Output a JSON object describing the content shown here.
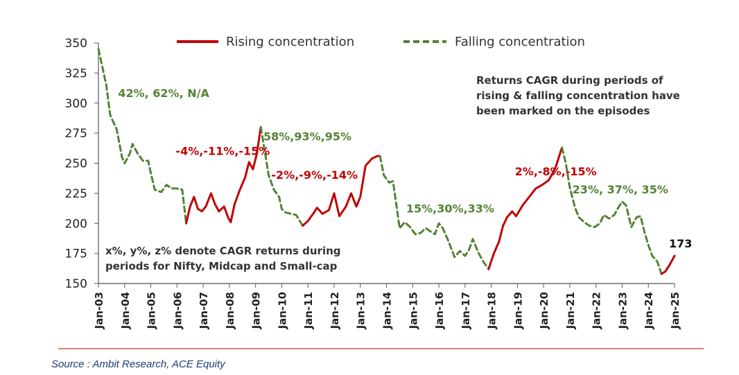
{
  "chart_data": {
    "type": "line",
    "title": "",
    "ylim": [
      150,
      350
    ],
    "yticks": [
      "350",
      "325",
      "300",
      "275",
      "250",
      "225",
      "200",
      "175",
      "150"
    ],
    "x_tick_labels": [
      "Jan-03",
      "Jan-04",
      "Jan-05",
      "Jan-06",
      "Jan-07",
      "Jan-08",
      "Jan-09",
      "Jan-10",
      "Jan-11",
      "Jan-12",
      "Jan-13",
      "Jan-14",
      "Jan-15",
      "Jan-16",
      "Jan-17",
      "Jan-18",
      "Jan-19",
      "Jan-20",
      "Jan-21",
      "Jan-22",
      "Jan-23",
      "Jan-24",
      "Jan-25"
    ],
    "legend": {
      "rising": "Rising concentration",
      "falling": "Falling concentration"
    },
    "colors": {
      "rising": "#c00000",
      "falling": "#548235"
    },
    "series": [
      {
        "name": "Falling concentration",
        "style": "falling",
        "points": [
          [
            2003.0,
            345
          ],
          [
            2003.3,
            315
          ],
          [
            2003.45,
            290
          ],
          [
            2003.7,
            278
          ],
          [
            2003.9,
            255
          ],
          [
            2004.0,
            250
          ],
          [
            2004.2,
            258
          ],
          [
            2004.3,
            266
          ],
          [
            2004.5,
            258
          ],
          [
            2004.7,
            252
          ],
          [
            2004.9,
            252
          ],
          [
            2005.0,
            242
          ],
          [
            2005.15,
            228
          ],
          [
            2005.4,
            226
          ],
          [
            2005.6,
            232
          ],
          [
            2005.8,
            229
          ],
          [
            2006.0,
            229
          ],
          [
            2006.2,
            228
          ],
          [
            2006.35,
            200
          ]
        ]
      },
      {
        "name": "Rising concentration",
        "style": "rising",
        "points": [
          [
            2006.35,
            200
          ],
          [
            2006.5,
            214
          ],
          [
            2006.65,
            222
          ],
          [
            2006.8,
            212
          ],
          [
            2006.95,
            210
          ],
          [
            2007.1,
            214
          ],
          [
            2007.3,
            225
          ],
          [
            2007.45,
            216
          ],
          [
            2007.6,
            210
          ],
          [
            2007.8,
            214
          ],
          [
            2007.95,
            205
          ],
          [
            2008.05,
            201
          ],
          [
            2008.2,
            216
          ],
          [
            2008.4,
            228
          ],
          [
            2008.6,
            238
          ],
          [
            2008.75,
            251
          ],
          [
            2008.9,
            245
          ],
          [
            2009.05,
            258
          ],
          [
            2009.2,
            280
          ]
        ]
      },
      {
        "name": "Falling concentration",
        "style": "falling",
        "points": [
          [
            2009.2,
            280
          ],
          [
            2009.35,
            260
          ],
          [
            2009.5,
            240
          ],
          [
            2009.7,
            228
          ],
          [
            2009.9,
            222
          ],
          [
            2010.0,
            212
          ],
          [
            2010.15,
            209
          ],
          [
            2010.35,
            208
          ],
          [
            2010.55,
            207
          ],
          [
            2010.8,
            198
          ]
        ]
      },
      {
        "name": "Rising concentration",
        "style": "rising",
        "points": [
          [
            2010.8,
            198
          ],
          [
            2011.0,
            202
          ],
          [
            2011.2,
            208
          ],
          [
            2011.35,
            213
          ],
          [
            2011.55,
            208
          ],
          [
            2011.8,
            211
          ],
          [
            2012.0,
            225
          ],
          [
            2012.2,
            206
          ],
          [
            2012.45,
            214
          ],
          [
            2012.65,
            225
          ],
          [
            2012.85,
            214
          ],
          [
            2013.0,
            222
          ],
          [
            2013.2,
            248
          ],
          [
            2013.45,
            254
          ],
          [
            2013.65,
            256
          ],
          [
            2013.75,
            256
          ]
        ]
      },
      {
        "name": "Falling concentration",
        "style": "falling",
        "points": [
          [
            2013.75,
            256
          ],
          [
            2013.9,
            240
          ],
          [
            2014.1,
            234
          ],
          [
            2014.25,
            235
          ],
          [
            2014.4,
            212
          ],
          [
            2014.5,
            196
          ],
          [
            2014.7,
            201
          ],
          [
            2014.9,
            197
          ],
          [
            2015.1,
            191
          ],
          [
            2015.3,
            192
          ],
          [
            2015.5,
            196
          ],
          [
            2015.7,
            193
          ],
          [
            2015.85,
            191
          ],
          [
            2016.0,
            200
          ],
          [
            2016.15,
            196
          ],
          [
            2016.35,
            186
          ],
          [
            2016.6,
            172
          ],
          [
            2016.8,
            177
          ],
          [
            2017.0,
            173
          ],
          [
            2017.15,
            178
          ],
          [
            2017.3,
            187
          ],
          [
            2017.5,
            176
          ],
          [
            2017.7,
            168
          ],
          [
            2017.9,
            162
          ]
        ]
      },
      {
        "name": "Rising concentration",
        "style": "rising",
        "points": [
          [
            2017.9,
            162
          ],
          [
            2018.1,
            175
          ],
          [
            2018.3,
            185
          ],
          [
            2018.45,
            198
          ],
          [
            2018.6,
            205
          ],
          [
            2018.8,
            210
          ],
          [
            2018.95,
            206
          ],
          [
            2019.2,
            215
          ],
          [
            2019.45,
            222
          ],
          [
            2019.7,
            229
          ],
          [
            2019.95,
            232
          ],
          [
            2020.2,
            236
          ],
          [
            2020.45,
            246
          ],
          [
            2020.7,
            263
          ]
        ]
      },
      {
        "name": "Falling concentration",
        "style": "falling",
        "points": [
          [
            2020.7,
            263
          ],
          [
            2020.85,
            250
          ],
          [
            2021.0,
            230
          ],
          [
            2021.2,
            213
          ],
          [
            2021.35,
            205
          ],
          [
            2021.55,
            201
          ],
          [
            2021.75,
            198
          ],
          [
            2021.95,
            197
          ],
          [
            2022.15,
            200
          ],
          [
            2022.3,
            207
          ],
          [
            2022.5,
            204
          ],
          [
            2022.7,
            207
          ],
          [
            2022.85,
            213
          ],
          [
            2023.0,
            218
          ],
          [
            2023.15,
            215
          ],
          [
            2023.35,
            197
          ],
          [
            2023.55,
            205
          ],
          [
            2023.7,
            206
          ],
          [
            2023.85,
            193
          ],
          [
            2024.0,
            182
          ],
          [
            2024.15,
            173
          ],
          [
            2024.35,
            168
          ],
          [
            2024.5,
            158
          ]
        ]
      },
      {
        "name": "Rising concentration",
        "style": "rising",
        "points": [
          [
            2024.5,
            158
          ],
          [
            2024.65,
            160
          ],
          [
            2024.8,
            165
          ],
          [
            2025.0,
            173
          ]
        ]
      }
    ],
    "annotations": [
      {
        "text": "42%, 62%, N/A",
        "style": "falling",
        "at": [
          2003.75,
          305
        ]
      },
      {
        "text": "-4%,-11%,-15%",
        "style": "rising",
        "at": [
          2005.95,
          257
        ]
      },
      {
        "text": "58%,93%,95%",
        "style": "falling",
        "at": [
          2009.3,
          269
        ]
      },
      {
        "text": "-2%,-9%,-14%",
        "style": "rising",
        "at": [
          2009.6,
          237
        ]
      },
      {
        "text": "15%,30%,33%",
        "style": "falling",
        "at": [
          2014.75,
          209
        ]
      },
      {
        "text": "2%,-8%,-15%",
        "style": "rising",
        "at": [
          2018.9,
          240
        ]
      },
      {
        "text": "23%, 37%, 35%",
        "style": "falling",
        "at": [
          2021.1,
          225
        ]
      },
      {
        "text": "173",
        "style": "latest",
        "at": [
          2025.0,
          180
        ]
      }
    ],
    "notes": {
      "top_right": [
        "Returns CAGR during periods of",
        "rising & falling concentration have",
        "been marked on the episodes"
      ],
      "bottom_left": [
        "x%, y%, z% denote CAGR returns during",
        "periods for Nifty, Midcap and Small-cap"
      ]
    }
  },
  "source": "Source : Ambit Research, ACE Equity"
}
